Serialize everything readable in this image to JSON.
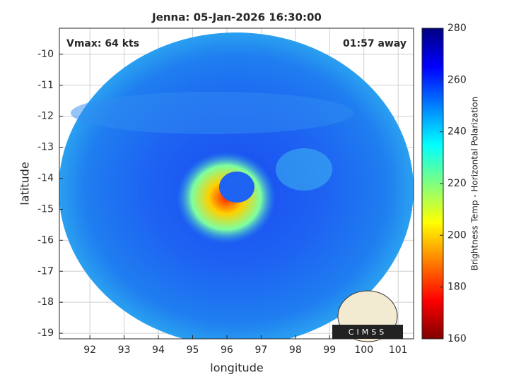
{
  "chart_data": {
    "type": "image",
    "title": "Jenna: 05-Jan-2026 16:30:00",
    "xlabel": "longitude",
    "ylabel": "latitude",
    "annotations": [
      "Vmax: 64 kts",
      "01:57 away"
    ],
    "logo": "CIMSS",
    "xlim": [
      91.11,
      101.45
    ],
    "xticks": [
      92,
      93,
      94,
      95,
      96,
      97,
      98,
      99,
      100,
      101
    ],
    "ylim": [
      -19.18,
      -9.16
    ],
    "yticks": [
      -10,
      -11,
      -12,
      -13,
      -14,
      -15,
      -16,
      -17,
      -18,
      -19
    ],
    "grid": true,
    "colorbar": {
      "label": "Brightness Temp - Horizontal Polarization",
      "lim": [
        160,
        280
      ],
      "ticks": [
        160,
        180,
        200,
        220,
        240,
        260,
        280
      ],
      "colormap": "jet"
    }
  }
}
